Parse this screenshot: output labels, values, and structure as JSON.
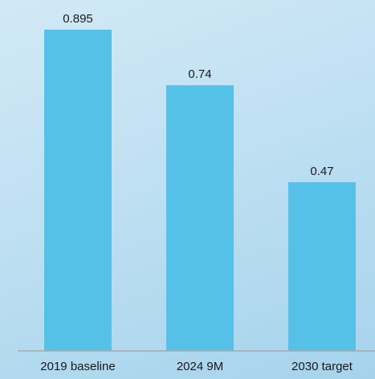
{
  "chart_data": {
    "type": "bar",
    "categories": [
      "2019 baseline",
      "2024 9M",
      "2030 target"
    ],
    "values": [
      0.895,
      0.74,
      0.47
    ],
    "value_labels": [
      "0.895",
      "0.74",
      "0.47"
    ],
    "title": "",
    "xlabel": "",
    "ylabel": "",
    "ylim": [
      0,
      1.0
    ],
    "grid": false,
    "bar_color": "#56c1e8",
    "axis_color": "#a9a9a9"
  }
}
